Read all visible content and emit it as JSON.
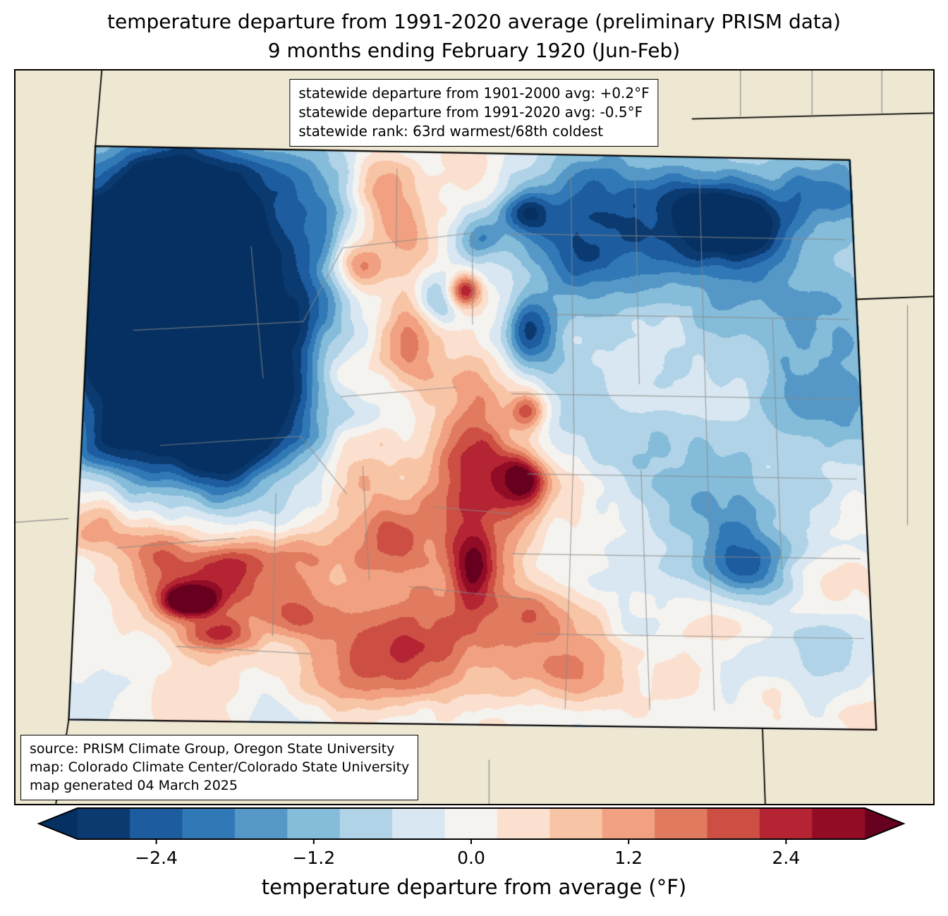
{
  "title": {
    "line1": "temperature departure from 1991-2020 average (preliminary PRISM data)",
    "line2": "9 months ending February 1920 (Jun-Feb)"
  },
  "stats_box": {
    "lines": [
      "statewide departure from 1901-2000 avg: +0.2°F",
      "statewide departure from 1991-2020 avg: -0.5°F",
      "statewide rank: 63rd warmest/68th coldest"
    ]
  },
  "source_box": {
    "lines": [
      "source: PRISM Climate Group, Oregon State University",
      "map: Colorado Climate Center/Colorado State University",
      "map generated 04 March 2025"
    ]
  },
  "colorbar": {
    "label": "temperature departure from average (°F)",
    "vmin": -3.0,
    "vmax": 3.0,
    "bin_width": 0.4,
    "ticks": [
      {
        "value": -2.4,
        "label": "−2.4"
      },
      {
        "value": -1.2,
        "label": "−1.2"
      },
      {
        "value": 0.0,
        "label": "0.0"
      },
      {
        "value": 1.2,
        "label": "1.2"
      },
      {
        "value": 2.4,
        "label": "2.4"
      }
    ],
    "bin_colors": [
      "#0b3a70",
      "#1c5c9f",
      "#3079b6",
      "#5598c7",
      "#84bcd9",
      "#b0d3e7",
      "#d8e7f1",
      "#f5f3ef",
      "#fbe0cf",
      "#f8c4a6",
      "#f1a181",
      "#e07b5f",
      "#cd4f44",
      "#b42433",
      "#930c26"
    ],
    "under_color": "#053061",
    "over_color": "#67001f"
  },
  "map": {
    "background_color": "#eee8d2",
    "state_border_color": "#000000",
    "county_line_color": "#8a8a8a",
    "corners": {
      "tl": [
        0.087,
        0.103
      ],
      "tr": [
        0.909,
        0.122
      ],
      "br": [
        0.938,
        0.899
      ],
      "bl": [
        0.058,
        0.885
      ]
    },
    "field": {
      "noise": {
        "scales": [
          150,
          64,
          30
        ],
        "amps": [
          0.5,
          0.33,
          0.22
        ],
        "seed": 7
      },
      "blobs": [
        [
          0.06,
          0.18,
          0.1,
          0.14,
          -3.6
        ],
        [
          0.1,
          0.38,
          0.1,
          0.14,
          -3.2
        ],
        [
          0.17,
          0.5,
          0.06,
          0.07,
          -2.8
        ],
        [
          0.2,
          0.3,
          0.07,
          0.1,
          -1.8
        ],
        [
          0.13,
          0.1,
          0.09,
          0.08,
          -2.0
        ],
        [
          0.28,
          0.42,
          0.08,
          0.08,
          -1.0
        ],
        [
          0.3,
          0.15,
          0.06,
          0.1,
          -0.8
        ],
        [
          0.83,
          0.11,
          0.06,
          0.05,
          -2.6
        ],
        [
          0.75,
          0.13,
          0.13,
          0.09,
          -1.5
        ],
        [
          0.63,
          0.16,
          0.05,
          0.09,
          -1.4
        ],
        [
          0.57,
          0.1,
          0.025,
          0.03,
          -2.0
        ],
        [
          0.57,
          0.31,
          0.022,
          0.04,
          -2.2
        ],
        [
          0.51,
          0.15,
          0.02,
          0.025,
          -1.4
        ],
        [
          0.45,
          0.26,
          0.02,
          0.03,
          -1.6
        ],
        [
          0.93,
          0.3,
          0.09,
          0.12,
          -1.1
        ],
        [
          0.97,
          0.05,
          0.05,
          0.05,
          -1.6
        ],
        [
          0.85,
          0.3,
          0.3,
          0.3,
          -0.45
        ],
        [
          0.85,
          0.72,
          0.035,
          0.04,
          -1.9
        ],
        [
          0.82,
          0.65,
          0.1,
          0.09,
          -0.8
        ],
        [
          0.95,
          0.86,
          0.06,
          0.05,
          -1.2
        ],
        [
          0.7,
          0.45,
          0.08,
          0.06,
          -0.5
        ],
        [
          0.38,
          0.07,
          0.035,
          0.06,
          1.5
        ],
        [
          0.35,
          0.2,
          0.025,
          0.03,
          2.3
        ],
        [
          0.42,
          0.16,
          0.03,
          0.05,
          1.2
        ],
        [
          0.49,
          0.24,
          0.014,
          0.02,
          2.8
        ],
        [
          0.42,
          0.33,
          0.03,
          0.06,
          1.5
        ],
        [
          0.34,
          0.38,
          0.03,
          0.04,
          1.4
        ],
        [
          0.5,
          0.42,
          0.03,
          0.05,
          1.4
        ],
        [
          0.57,
          0.45,
          0.016,
          0.025,
          2.2
        ],
        [
          0.51,
          0.52,
          0.03,
          0.04,
          1.4
        ],
        [
          0.565,
          0.565,
          0.02,
          0.03,
          2.5
        ],
        [
          0.46,
          0.52,
          0.1,
          0.14,
          0.7
        ],
        [
          0.5,
          0.72,
          0.02,
          0.045,
          2.4
        ],
        [
          0.52,
          0.63,
          0.05,
          0.06,
          1.4
        ],
        [
          0.44,
          0.84,
          0.1,
          0.08,
          1.7
        ],
        [
          0.57,
          0.8,
          0.05,
          0.05,
          1.3
        ],
        [
          0.63,
          0.91,
          0.055,
          0.045,
          1.2
        ],
        [
          0.35,
          0.91,
          0.08,
          0.05,
          1.1
        ],
        [
          0.28,
          0.71,
          0.03,
          0.03,
          1.3
        ],
        [
          0.38,
          0.68,
          0.04,
          0.04,
          1.4
        ],
        [
          0.14,
          0.77,
          0.05,
          0.04,
          2.0
        ],
        [
          0.145,
          0.79,
          0.022,
          0.018,
          2.9
        ],
        [
          0.2,
          0.72,
          0.04,
          0.04,
          1.7
        ],
        [
          0.1,
          0.7,
          0.03,
          0.03,
          1.4
        ],
        [
          0.18,
          0.85,
          0.03,
          0.022,
          2.1
        ],
        [
          0.26,
          0.8,
          0.04,
          0.035,
          1.4
        ],
        [
          0.03,
          0.66,
          0.035,
          0.05,
          1.1
        ],
        [
          0.03,
          0.52,
          0.03,
          0.04,
          -1.0
        ],
        [
          0.33,
          0.55,
          0.04,
          0.06,
          0.8
        ]
      ]
    },
    "county_lines": [
      [
        0.63,
        0.03,
        0.63,
        0.5
      ],
      [
        0.63,
        0.5,
        0.615,
        0.97
      ],
      [
        0.715,
        0.03,
        0.715,
        0.4
      ],
      [
        0.715,
        0.55,
        0.72,
        0.97
      ],
      [
        0.8,
        0.03,
        0.8,
        0.97
      ],
      [
        0.89,
        0.28,
        0.89,
        0.72
      ],
      [
        0.55,
        0.14,
        0.99,
        0.14
      ],
      [
        0.6,
        0.28,
        0.99,
        0.28
      ],
      [
        0.55,
        0.42,
        0.99,
        0.42
      ],
      [
        0.57,
        0.56,
        0.99,
        0.56
      ],
      [
        0.55,
        0.7,
        0.99,
        0.7
      ],
      [
        0.58,
        0.84,
        0.99,
        0.84
      ],
      [
        0.06,
        0.32,
        0.28,
        0.3
      ],
      [
        0.28,
        0.3,
        0.33,
        0.17
      ],
      [
        0.1,
        0.52,
        0.28,
        0.5
      ],
      [
        0.28,
        0.5,
        0.34,
        0.6
      ],
      [
        0.05,
        0.7,
        0.2,
        0.68
      ],
      [
        0.33,
        0.43,
        0.48,
        0.41
      ],
      [
        0.21,
        0.17,
        0.23,
        0.4
      ],
      [
        0.36,
        0.55,
        0.37,
        0.75
      ],
      [
        0.25,
        0.6,
        0.25,
        0.85
      ],
      [
        0.45,
        0.62,
        0.55,
        0.63
      ],
      [
        0.5,
        0.14,
        0.5,
        0.3
      ],
      [
        0.42,
        0.76,
        0.58,
        0.78
      ],
      [
        0.13,
        0.87,
        0.3,
        0.88
      ],
      [
        0.4,
        0.03,
        0.4,
        0.17
      ],
      [
        0.33,
        0.17,
        0.5,
        0.14
      ]
    ],
    "neighbor_lines": [
      {
        "seg": [
          0.094,
          0.0,
          0.087,
          0.103
        ],
        "color": "black"
      },
      {
        "seg": [
          0.737,
          0.066,
          1.0,
          0.058
        ],
        "color": "black"
      },
      {
        "seg": [
          0.916,
          0.312,
          1.0,
          0.308
        ],
        "color": "black"
      },
      {
        "seg": [
          0.814,
          0.897,
          0.817,
          1.0
        ],
        "color": "black"
      },
      {
        "seg": [
          0.058,
          0.885,
          0.044,
          1.0
        ],
        "color": "black"
      },
      {
        "seg": [
          0.79,
          0.0,
          0.79,
          0.062
        ],
        "color": "gray"
      },
      {
        "seg": [
          0.868,
          0.0,
          0.868,
          0.06
        ],
        "color": "gray"
      },
      {
        "seg": [
          0.944,
          0.0,
          0.944,
          0.058
        ],
        "color": "gray"
      },
      {
        "seg": [
          0.0,
          0.616,
          0.058,
          0.611
        ],
        "color": "gray"
      },
      {
        "seg": [
          0.972,
          0.32,
          0.972,
          0.62
        ],
        "color": "gray"
      },
      {
        "seg": [
          0.516,
          0.94,
          0.516,
          1.0
        ],
        "color": "gray"
      }
    ]
  }
}
